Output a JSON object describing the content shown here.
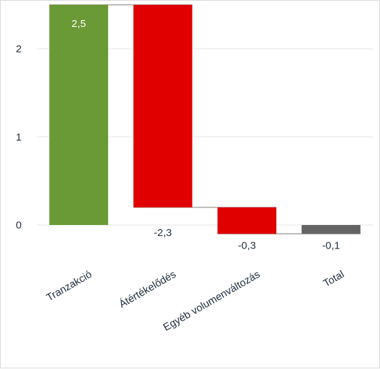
{
  "chart_data": {
    "type": "bar",
    "subtype": "waterfall",
    "title": "",
    "xlabel": "",
    "ylabel": "",
    "ylim": [
      -0.3,
      2.5
    ],
    "yticks": [
      0,
      1,
      2
    ],
    "ytick_labels": [
      "0",
      "1",
      "2"
    ],
    "grid": true,
    "legend": "none",
    "categories": [
      "Tranzakció",
      "Átértékelődés",
      "Egyéb volumenváltozás",
      "Total"
    ],
    "values": [
      2.5,
      -2.3,
      -0.3,
      -0.1
    ],
    "data_labels": [
      "2,5",
      "-2,3",
      "-0,3",
      "-0,1"
    ],
    "bar_kinds": [
      "increase",
      "decrease",
      "decrease",
      "total"
    ],
    "colors": {
      "increase": "#6a9a35",
      "decrease": "#e00000",
      "total": "#646464",
      "connector": "#a6a6a6",
      "grid": "#e6e6e6",
      "label_inside": "#ffffff",
      "label_outside": "#1f2d3d"
    }
  }
}
